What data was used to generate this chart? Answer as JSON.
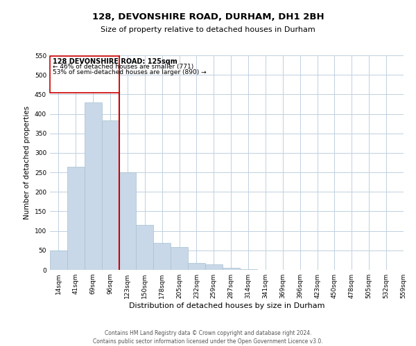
{
  "title": "128, DEVONSHIRE ROAD, DURHAM, DH1 2BH",
  "subtitle": "Size of property relative to detached houses in Durham",
  "xlabel": "Distribution of detached houses by size in Durham",
  "ylabel": "Number of detached properties",
  "bar_color": "#c8d8e8",
  "bar_edge_color": "#a8c0d0",
  "bins": [
    "14sqm",
    "41sqm",
    "69sqm",
    "96sqm",
    "123sqm",
    "150sqm",
    "178sqm",
    "205sqm",
    "232sqm",
    "259sqm",
    "287sqm",
    "314sqm",
    "341sqm",
    "369sqm",
    "396sqm",
    "423sqm",
    "450sqm",
    "478sqm",
    "505sqm",
    "532sqm",
    "559sqm"
  ],
  "values": [
    50,
    265,
    430,
    383,
    250,
    115,
    70,
    58,
    17,
    15,
    6,
    1,
    0,
    0,
    0,
    0,
    0,
    0,
    0,
    0
  ],
  "ylim": [
    0,
    550
  ],
  "yticks": [
    0,
    50,
    100,
    150,
    200,
    250,
    300,
    350,
    400,
    450,
    500,
    550
  ],
  "marker_bin_index": 4,
  "marker_label": "128 DEVONSHIRE ROAD: 125sqm",
  "annotation_line1": "← 46% of detached houses are smaller (771)",
  "annotation_line2": "53% of semi-detached houses are larger (890) →",
  "vline_color": "#cc0000",
  "box_edge_color": "#cc0000",
  "footer1": "Contains HM Land Registry data © Crown copyright and database right 2024.",
  "footer2": "Contains public sector information licensed under the Open Government Licence v3.0.",
  "background_color": "#ffffff",
  "grid_color": "#c0d0e0"
}
